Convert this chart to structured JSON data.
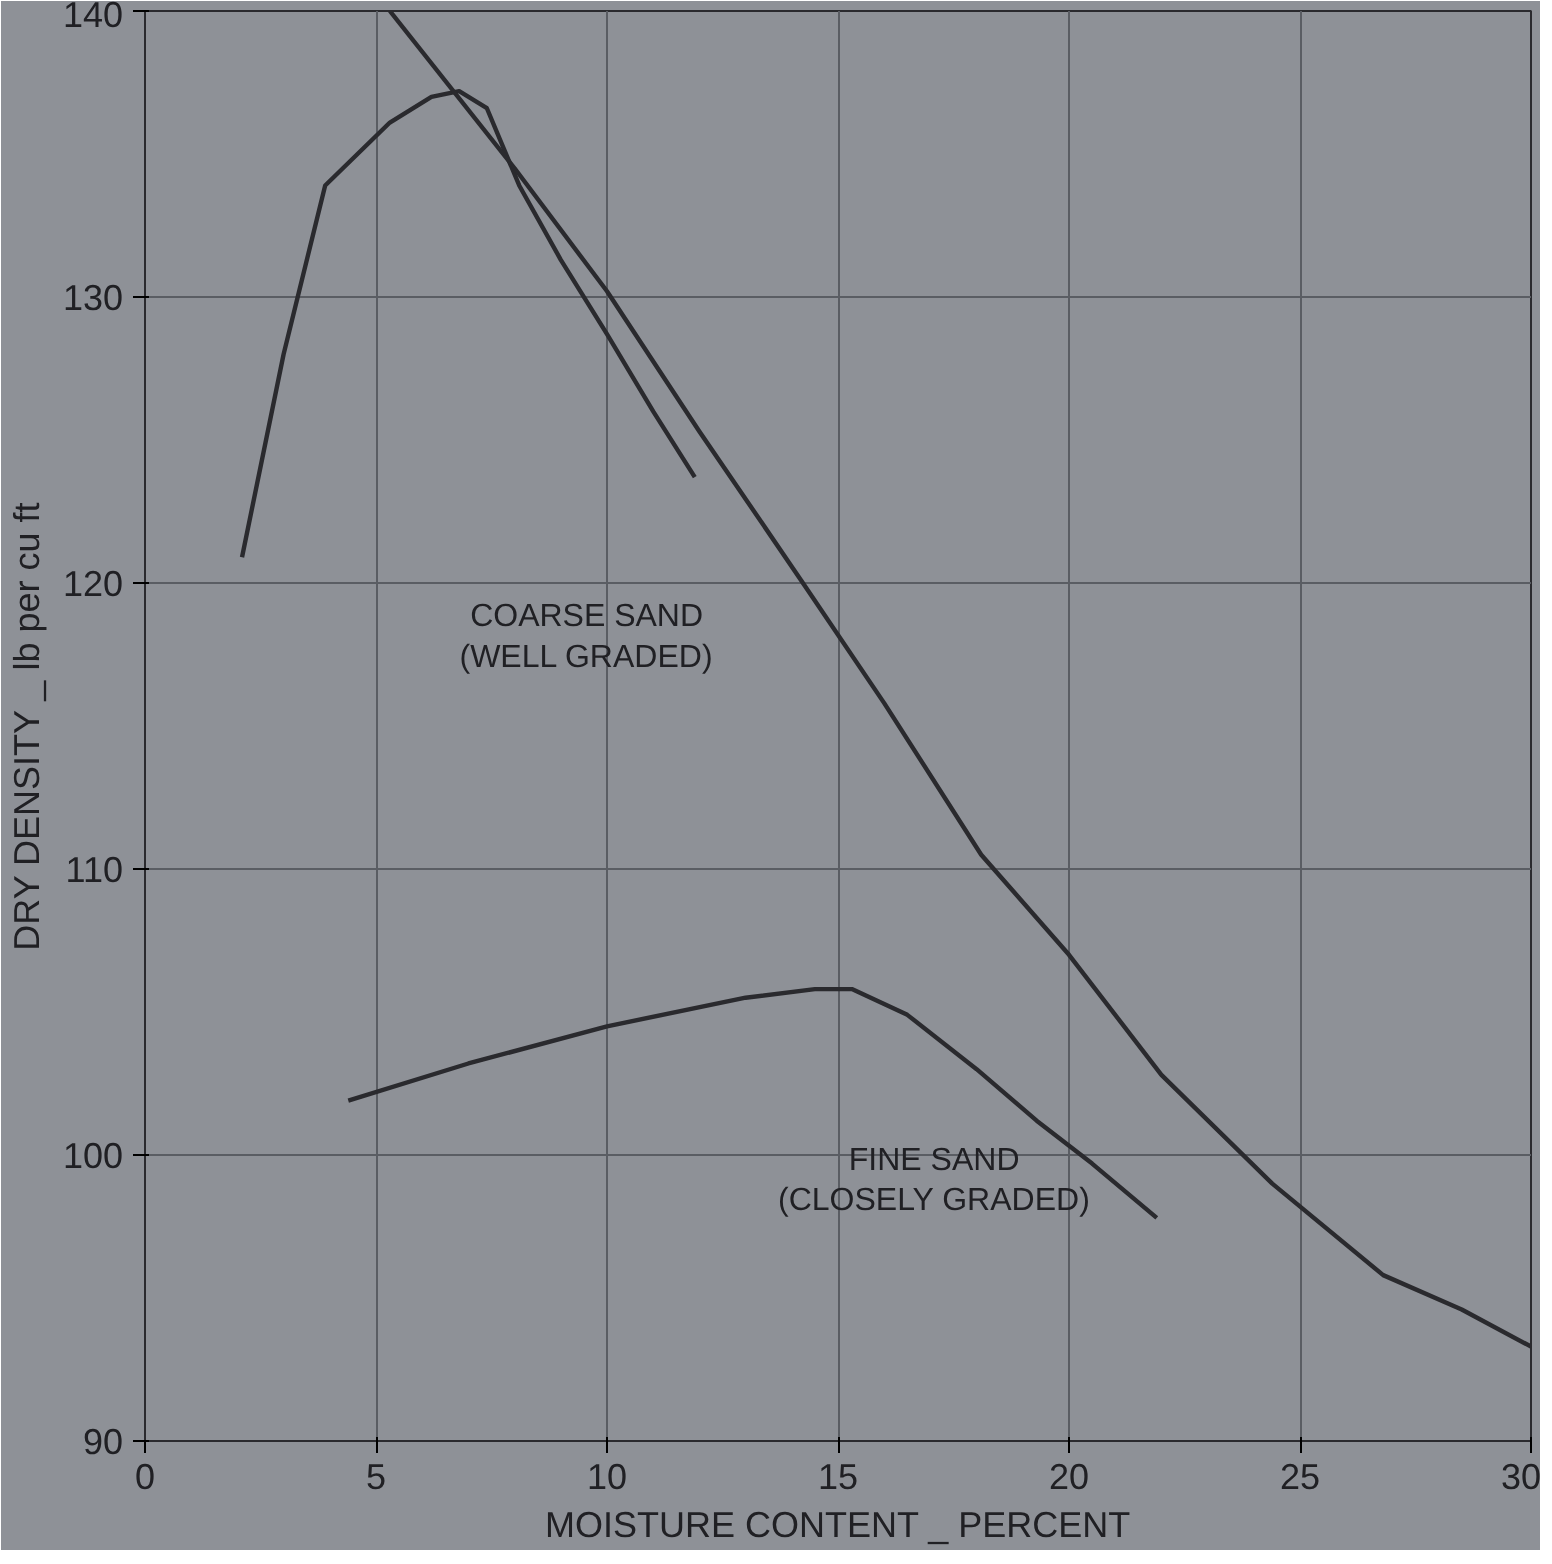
{
  "chart_data": {
    "type": "line",
    "xlabel": "MOISTURE CONTENT _ PERCENT",
    "ylabel": "DRY DENSITY _ lb per cu ft",
    "xlim": [
      0,
      30
    ],
    "ylim": [
      90,
      140
    ],
    "xticks": [
      0,
      5,
      10,
      15,
      20,
      25,
      30
    ],
    "yticks": [
      90,
      100,
      110,
      120,
      130,
      140
    ],
    "grid": true,
    "marker": "none",
    "line_style": "solid",
    "series": [
      {
        "color": "#2a2a2e",
        "x": [
          2.1,
          3.0,
          3.9,
          5.3,
          6.2,
          6.8,
          7.4,
          8.1,
          9.0,
          10.0,
          11.0,
          11.9
        ],
        "values": [
          120.9,
          128.0,
          133.9,
          136.1,
          137.0,
          137.2,
          136.6,
          133.9,
          131.3,
          128.7,
          126.0,
          123.7
        ]
      },
      {
        "color": "#2a2a2e",
        "x": [
          5.3,
          8.0,
          10.0,
          12.0,
          14.2,
          16.0,
          18.1,
          20.0,
          22.0,
          24.4,
          26.8,
          28.5,
          30.0
        ],
        "values": [
          140.0,
          134.5,
          130.2,
          125.3,
          120.1,
          115.8,
          110.5,
          107.0,
          102.8,
          99.0,
          95.8,
          94.6,
          93.3
        ]
      },
      {
        "color": "#2a2a2e",
        "x": [
          4.4,
          7.0,
          10.0,
          13.0,
          14.5,
          15.3,
          16.5,
          18.0,
          19.3,
          20.5,
          21.9
        ],
        "values": [
          101.9,
          103.2,
          104.5,
          105.5,
          105.8,
          105.8,
          104.9,
          103.0,
          101.2,
          99.7,
          97.8
        ]
      }
    ],
    "annotations": [
      "COARSE SAND\n(WELL GRADED)",
      "FINE SAND\n(CLOSELY GRADED)"
    ]
  }
}
